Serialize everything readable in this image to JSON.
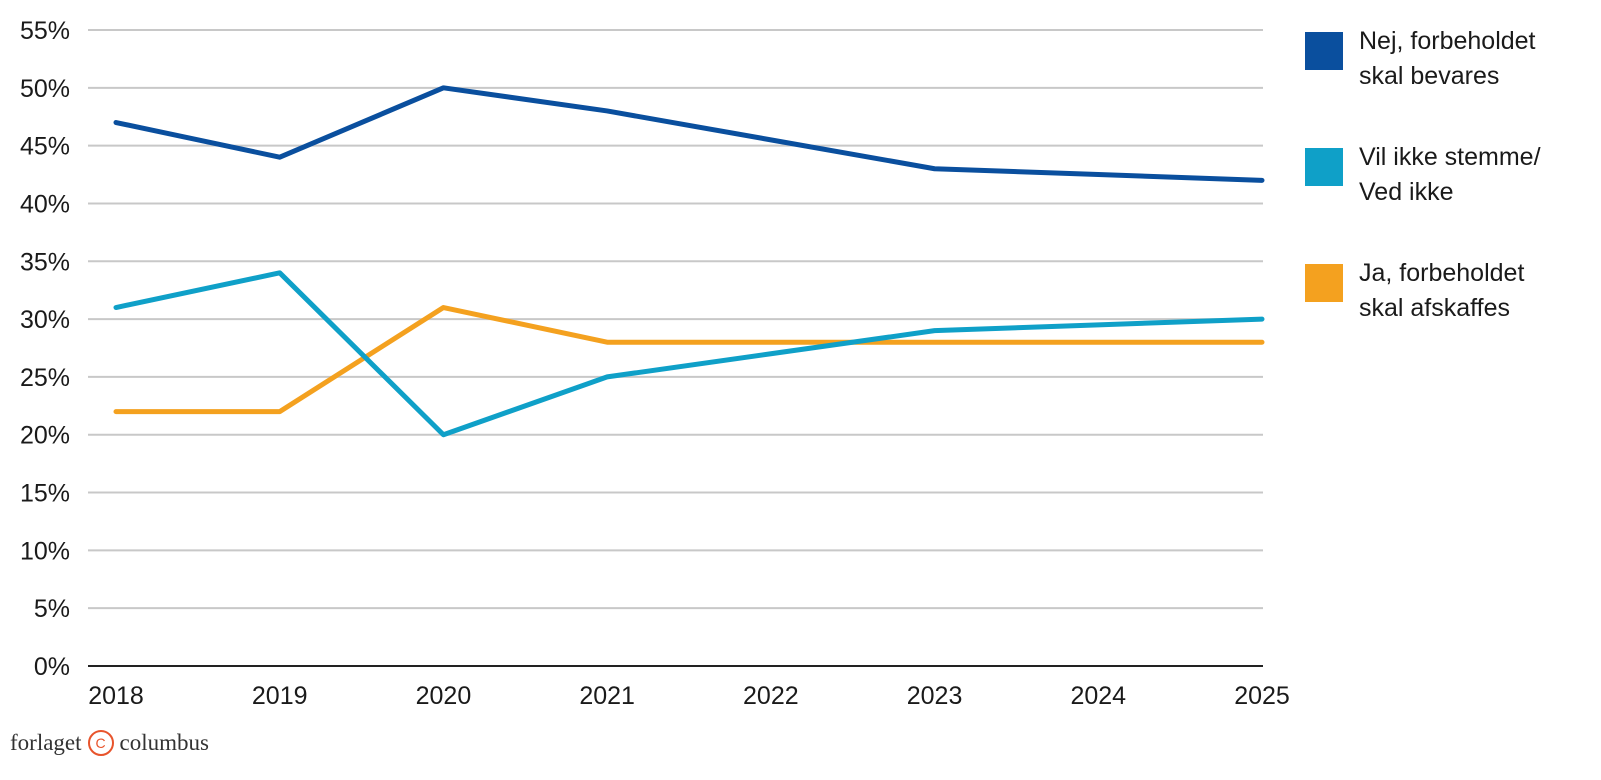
{
  "chart_data": {
    "type": "line",
    "x": [
      "2018",
      "2019",
      "2020",
      "2021",
      "2022",
      "2023",
      "2024",
      "2025"
    ],
    "ylim": [
      0,
      55
    ],
    "yticks": [
      0,
      5,
      10,
      15,
      20,
      25,
      30,
      35,
      40,
      45,
      50,
      55
    ],
    "ytick_labels": [
      "0%",
      "5%",
      "10%",
      "15%",
      "20%",
      "25%",
      "30%",
      "35%",
      "40%",
      "45%",
      "50%",
      "55%"
    ],
    "grid": true,
    "legend_position": "right",
    "series": [
      {
        "name": "Nej, forbeholdet\nskal bevares",
        "color": "#0a4f9e",
        "values": [
          47,
          44,
          50,
          48,
          45.5,
          43,
          42.5,
          42
        ]
      },
      {
        "name": "Vil ikke stemme/\nVed ikke",
        "color": "#0fa0c8",
        "values": [
          31,
          34,
          20,
          25,
          27,
          29,
          29.5,
          30
        ]
      },
      {
        "name": "Ja, forbeholdet\nskal afskaffes",
        "color": "#f4a11f",
        "values": [
          22,
          22,
          31,
          28,
          28,
          28,
          28,
          28
        ]
      }
    ]
  },
  "brand": {
    "left": "forlaget",
    "mark": "C",
    "right": "columbus"
  }
}
